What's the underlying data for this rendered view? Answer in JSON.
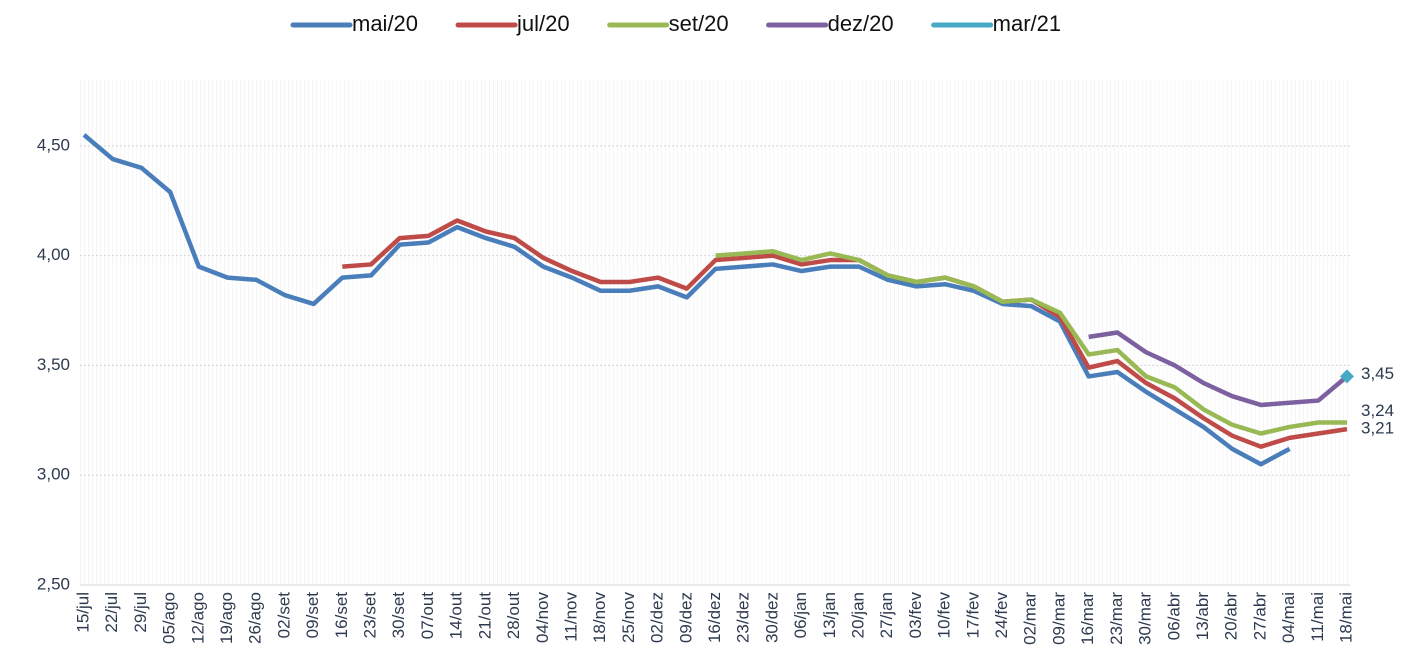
{
  "chart_data": {
    "type": "line",
    "categories": [
      "15/jul",
      "22/jul",
      "29/jul",
      "05/ago",
      "12/ago",
      "19/ago",
      "26/ago",
      "02/set",
      "09/set",
      "16/set",
      "23/set",
      "30/set",
      "07/out",
      "14/out",
      "21/out",
      "28/out",
      "04/nov",
      "11/nov",
      "18/nov",
      "25/nov",
      "02/dez",
      "09/dez",
      "16/dez",
      "23/dez",
      "30/dez",
      "06/jan",
      "13/jan",
      "20/jan",
      "27/jan",
      "03/fev",
      "10/fev",
      "17/fev",
      "24/fev",
      "02/mar",
      "09/mar",
      "16/mar",
      "23/mar",
      "30/mar",
      "06/abr",
      "13/abr",
      "20/abr",
      "27/abr",
      "04/mai",
      "11/mai",
      "18/mai"
    ],
    "series": [
      {
        "name": "mai/20",
        "color": "#4a7ebb",
        "values": [
          4.55,
          4.44,
          4.4,
          4.29,
          3.95,
          3.9,
          3.89,
          3.82,
          3.78,
          3.9,
          3.91,
          4.05,
          4.06,
          4.13,
          4.08,
          4.04,
          3.95,
          3.9,
          3.84,
          3.84,
          3.86,
          3.81,
          3.94,
          3.95,
          3.96,
          3.93,
          3.95,
          3.95,
          3.89,
          3.86,
          3.87,
          3.84,
          3.78,
          3.77,
          3.7,
          3.45,
          3.47,
          3.38,
          3.3,
          3.22,
          3.12,
          3.05,
          3.12,
          null,
          null
        ]
      },
      {
        "name": "jul/20",
        "color": "#be4b48",
        "end_label": "3,21",
        "values": [
          null,
          null,
          null,
          null,
          null,
          null,
          null,
          null,
          null,
          3.95,
          3.96,
          4.08,
          4.09,
          4.16,
          4.11,
          4.08,
          3.99,
          3.93,
          3.88,
          3.88,
          3.9,
          3.85,
          3.98,
          3.99,
          4.0,
          3.96,
          3.98,
          3.98,
          3.91,
          3.88,
          3.9,
          3.86,
          3.79,
          3.8,
          3.72,
          3.49,
          3.52,
          3.42,
          3.35,
          3.26,
          3.18,
          3.13,
          3.17,
          3.19,
          3.21
        ]
      },
      {
        "name": "set/20",
        "color": "#98b954",
        "end_label": "3,24",
        "values": [
          null,
          null,
          null,
          null,
          null,
          null,
          null,
          null,
          null,
          null,
          null,
          null,
          null,
          null,
          null,
          null,
          null,
          null,
          null,
          null,
          null,
          null,
          4.0,
          4.01,
          4.02,
          3.98,
          4.01,
          3.98,
          3.91,
          3.88,
          3.9,
          3.86,
          3.79,
          3.8,
          3.74,
          3.55,
          3.57,
          3.45,
          3.4,
          3.3,
          3.23,
          3.19,
          3.22,
          3.24,
          3.24
        ]
      },
      {
        "name": "dez/20",
        "color": "#7d60a0",
        "values": [
          null,
          null,
          null,
          null,
          null,
          null,
          null,
          null,
          null,
          null,
          null,
          null,
          null,
          null,
          null,
          null,
          null,
          null,
          null,
          null,
          null,
          null,
          null,
          null,
          null,
          null,
          null,
          null,
          null,
          null,
          null,
          null,
          null,
          null,
          null,
          3.63,
          3.65,
          3.56,
          3.5,
          3.42,
          3.36,
          3.32,
          3.33,
          3.34,
          3.45
        ]
      },
      {
        "name": "mar/21",
        "color": "#46aac5",
        "end_label": "3,45",
        "values": [
          null,
          null,
          null,
          null,
          null,
          null,
          null,
          null,
          null,
          null,
          null,
          null,
          null,
          null,
          null,
          null,
          null,
          null,
          null,
          null,
          null,
          null,
          null,
          null,
          null,
          null,
          null,
          null,
          null,
          null,
          null,
          null,
          null,
          null,
          null,
          null,
          null,
          null,
          null,
          null,
          null,
          null,
          null,
          null,
          3.45
        ]
      }
    ],
    "ylim": [
      2.5,
      4.8
    ],
    "yticks": [
      {
        "value": 2.5,
        "label": "2,50"
      },
      {
        "value": 3,
        "label": "3,00"
      },
      {
        "value": 3.5,
        "label": "3,50"
      },
      {
        "value": 4,
        "label": "4,00"
      },
      {
        "value": 4.5,
        "label": "4,50"
      }
    ],
    "grid": true,
    "legend": "top"
  }
}
